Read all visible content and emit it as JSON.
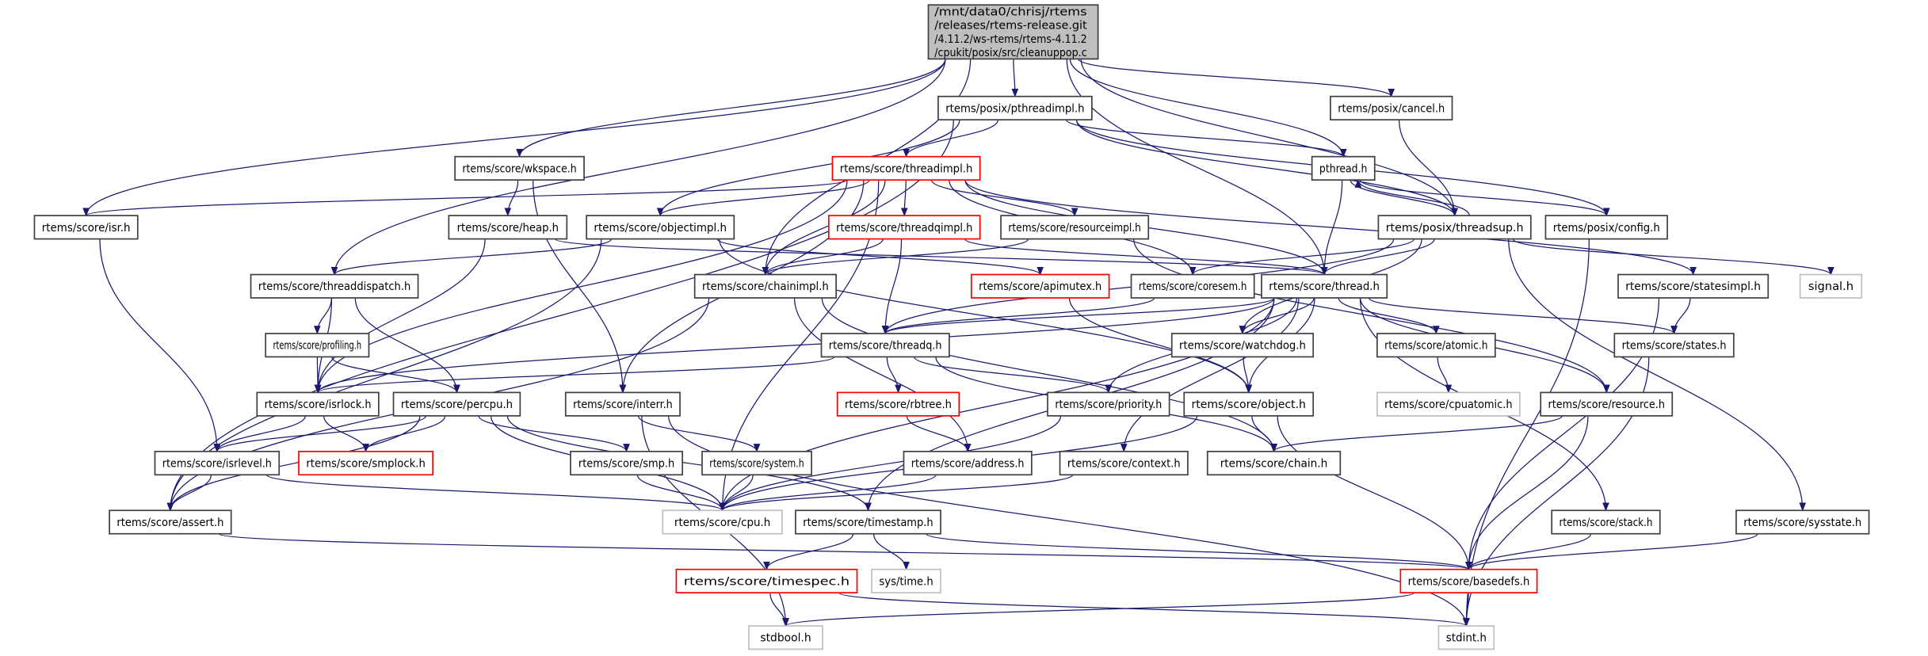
{
  "diagram": {
    "kind": "include dependency graph",
    "colors": {
      "edge": "#191970",
      "root_fill": "#bfbfbf",
      "missing_border": "#ff0000",
      "external_border": "#bfbfbf",
      "normal_border": "#404040"
    },
    "nodes": [
      {
        "id": "root",
        "lines": [
          "/mnt/data0/chrisj/rtems",
          "/releases/rtems-release.git",
          "/4.11.2/ws-rtems/rtems-4.11.2",
          "/cpukit/posix/src/cleanuppop.c"
        ],
        "style": "root"
      },
      {
        "id": "pthreadimpl",
        "label": "rtems/posix/pthreadimpl.h",
        "style": "normal"
      },
      {
        "id": "cancel",
        "label": "rtems/posix/cancel.h",
        "style": "normal"
      },
      {
        "id": "wkspace",
        "label": "rtems/score/wkspace.h",
        "style": "normal"
      },
      {
        "id": "threadimpl",
        "label": "rtems/score/threadimpl.h",
        "style": "red"
      },
      {
        "id": "pthread",
        "label": "pthread.h",
        "style": "normal"
      },
      {
        "id": "isr",
        "label": "rtems/score/isr.h",
        "style": "normal"
      },
      {
        "id": "heap",
        "label": "rtems/score/heap.h",
        "style": "normal"
      },
      {
        "id": "objectimpl",
        "label": "rtems/score/objectimpl.h",
        "style": "normal"
      },
      {
        "id": "threadqimpl",
        "label": "rtems/score/threadqimpl.h",
        "style": "red"
      },
      {
        "id": "resourceimpl",
        "label": "rtems/score/resourceimpl.h",
        "style": "normal"
      },
      {
        "id": "threadsup",
        "label": "rtems/posix/threadsup.h",
        "style": "normal"
      },
      {
        "id": "config",
        "label": "rtems/posix/config.h",
        "style": "normal"
      },
      {
        "id": "threaddispatch",
        "label": "rtems/score/threaddispatch.h",
        "style": "normal"
      },
      {
        "id": "chainimpl",
        "label": "rtems/score/chainimpl.h",
        "style": "normal"
      },
      {
        "id": "apimutex",
        "label": "rtems/score/apimutex.h",
        "style": "red"
      },
      {
        "id": "coresem",
        "label": "rtems/score/coresem.h",
        "style": "normal"
      },
      {
        "id": "thread",
        "label": "rtems/score/thread.h",
        "style": "normal"
      },
      {
        "id": "statesimpl",
        "label": "rtems/score/statesimpl.h",
        "style": "normal"
      },
      {
        "id": "signal",
        "label": "signal.h",
        "style": "gray"
      },
      {
        "id": "profiling",
        "label": "rtems/score/profiling.h",
        "style": "normal"
      },
      {
        "id": "threadq",
        "label": "rtems/score/threadq.h",
        "style": "normal"
      },
      {
        "id": "watchdog",
        "label": "rtems/score/watchdog.h",
        "style": "normal"
      },
      {
        "id": "atomic",
        "label": "rtems/score/atomic.h",
        "style": "normal"
      },
      {
        "id": "states",
        "label": "rtems/score/states.h",
        "style": "normal"
      },
      {
        "id": "isrlock",
        "label": "rtems/score/isrlock.h",
        "style": "normal"
      },
      {
        "id": "percpu",
        "label": "rtems/score/percpu.h",
        "style": "normal"
      },
      {
        "id": "interr",
        "label": "rtems/score/interr.h",
        "style": "normal"
      },
      {
        "id": "rbtree",
        "label": "rtems/score/rbtree.h",
        "style": "red"
      },
      {
        "id": "priority",
        "label": "rtems/score/priority.h",
        "style": "normal"
      },
      {
        "id": "object",
        "label": "rtems/score/object.h",
        "style": "normal"
      },
      {
        "id": "cpuatomic",
        "label": "rtems/score/cpuatomic.h",
        "style": "gray"
      },
      {
        "id": "resource",
        "label": "rtems/score/resource.h",
        "style": "normal"
      },
      {
        "id": "isrlevel",
        "label": "rtems/score/isrlevel.h",
        "style": "normal"
      },
      {
        "id": "smplock",
        "label": "rtems/score/smplock.h",
        "style": "red"
      },
      {
        "id": "smp",
        "label": "rtems/score/smp.h",
        "style": "normal"
      },
      {
        "id": "system",
        "label": "rtems/score/system.h",
        "style": "normal"
      },
      {
        "id": "address",
        "label": "rtems/score/address.h",
        "style": "normal"
      },
      {
        "id": "context",
        "label": "rtems/score/context.h",
        "style": "normal"
      },
      {
        "id": "chain",
        "label": "rtems/score/chain.h",
        "style": "normal"
      },
      {
        "id": "assert",
        "label": "rtems/score/assert.h",
        "style": "normal"
      },
      {
        "id": "cpu",
        "label": "rtems/score/cpu.h",
        "style": "gray"
      },
      {
        "id": "timestamp",
        "label": "rtems/score/timestamp.h",
        "style": "normal"
      },
      {
        "id": "stack",
        "label": "rtems/score/stack.h",
        "style": "normal"
      },
      {
        "id": "sysstate",
        "label": "rtems/score/sysstate.h",
        "style": "normal"
      },
      {
        "id": "timespec",
        "label": "rtems/score/timespec.h",
        "style": "red"
      },
      {
        "id": "systime",
        "label": "sys/time.h",
        "style": "gray"
      },
      {
        "id": "basedefs",
        "label": "rtems/score/basedefs.h",
        "style": "red"
      },
      {
        "id": "stdbool",
        "label": "stdbool.h",
        "style": "gray"
      },
      {
        "id": "stdint",
        "label": "stdint.h",
        "style": "gray"
      }
    ],
    "edges": [
      [
        "root",
        "isr"
      ],
      [
        "root",
        "threaddispatch"
      ],
      [
        "root",
        "chainimpl"
      ],
      [
        "root",
        "wkspace"
      ],
      [
        "root",
        "pthreadimpl"
      ],
      [
        "root",
        "thread"
      ],
      [
        "root",
        "pthread"
      ],
      [
        "root",
        "threadsup"
      ],
      [
        "root",
        "cancel"
      ],
      [
        "pthreadimpl",
        "threadimpl"
      ],
      [
        "pthreadimpl",
        "objectimpl"
      ],
      [
        "pthreadimpl",
        "pthread"
      ],
      [
        "pthreadimpl",
        "threadsup"
      ],
      [
        "pthreadimpl",
        "config"
      ],
      [
        "pthreadimpl",
        "assert"
      ],
      [
        "wkspace",
        "heap"
      ],
      [
        "wkspace",
        "interr"
      ],
      [
        "threadimpl",
        "isr"
      ],
      [
        "threadimpl",
        "objectimpl"
      ],
      [
        "threadimpl",
        "threadqimpl"
      ],
      [
        "threadimpl",
        "resourceimpl"
      ],
      [
        "threadimpl",
        "chainimpl"
      ],
      [
        "threadimpl",
        "interr"
      ],
      [
        "threadimpl",
        "thread"
      ],
      [
        "threadimpl",
        "statesimpl"
      ],
      [
        "threadimpl",
        "cpu"
      ],
      [
        "threadimpl",
        "isrlock"
      ],
      [
        "threadimpl",
        "coresem"
      ],
      [
        "cancel",
        "threadsup"
      ],
      [
        "pthread",
        "threadsup"
      ],
      [
        "pthread",
        "config"
      ],
      [
        "pthread",
        "thread"
      ],
      [
        "threadsup",
        "pthread"
      ],
      [
        "threadsup",
        "thread"
      ],
      [
        "threadsup",
        "coresem"
      ],
      [
        "threadsup",
        "watchdog"
      ],
      [
        "threadsup",
        "threadq"
      ],
      [
        "threadsup",
        "sysstate"
      ],
      [
        "threadsup",
        "signal"
      ],
      [
        "config",
        "stdint"
      ],
      [
        "isr",
        "isrlevel"
      ],
      [
        "heap",
        "thread"
      ],
      [
        "heap",
        "isrlock"
      ],
      [
        "objectimpl",
        "threaddispatch"
      ],
      [
        "objectimpl",
        "apimutex"
      ],
      [
        "objectimpl",
        "object"
      ],
      [
        "objectimpl",
        "assert"
      ],
      [
        "threadqimpl",
        "chainimpl"
      ],
      [
        "threadqimpl",
        "threadq"
      ],
      [
        "threadqimpl",
        "thread"
      ],
      [
        "resourceimpl",
        "chainimpl"
      ],
      [
        "resourceimpl",
        "resource"
      ],
      [
        "threaddispatch",
        "profiling"
      ],
      [
        "threaddispatch",
        "percpu"
      ],
      [
        "threaddispatch",
        "isrlock"
      ],
      [
        "chainimpl",
        "address"
      ],
      [
        "chainimpl",
        "chain"
      ],
      [
        "chainimpl",
        "assert"
      ],
      [
        "apimutex",
        "object"
      ],
      [
        "coresem",
        "threadq"
      ],
      [
        "thread",
        "threadq"
      ],
      [
        "thread",
        "isrlock"
      ],
      [
        "thread",
        "watchdog"
      ],
      [
        "thread",
        "atomic"
      ],
      [
        "thread",
        "states"
      ],
      [
        "thread",
        "priority"
      ],
      [
        "thread",
        "object"
      ],
      [
        "thread",
        "context"
      ],
      [
        "thread",
        "resource"
      ],
      [
        "thread",
        "stack"
      ],
      [
        "thread",
        "cpu"
      ],
      [
        "thread",
        "timestamp"
      ],
      [
        "statesimpl",
        "states"
      ],
      [
        "statesimpl",
        "basedefs"
      ],
      [
        "profiling",
        "isrlock"
      ],
      [
        "profiling",
        "percpu"
      ],
      [
        "threadq",
        "rbtree"
      ],
      [
        "threadq",
        "priority"
      ],
      [
        "threadq",
        "chain"
      ],
      [
        "threadq",
        "isrlock"
      ],
      [
        "watchdog",
        "object"
      ],
      [
        "atomic",
        "cpuatomic"
      ],
      [
        "states",
        "stdint"
      ],
      [
        "isrlock",
        "isrlevel"
      ],
      [
        "isrlock",
        "smplock"
      ],
      [
        "percpu",
        "isrlevel"
      ],
      [
        "percpu",
        "smplock"
      ],
      [
        "percpu",
        "smp"
      ],
      [
        "percpu",
        "cpu"
      ],
      [
        "percpu",
        "assert"
      ],
      [
        "percpu",
        "timestamp"
      ],
      [
        "interr",
        "system"
      ],
      [
        "interr",
        "stdbool"
      ],
      [
        "interr",
        "stdint"
      ],
      [
        "rbtree",
        "address"
      ],
      [
        "priority",
        "cpu"
      ],
      [
        "object",
        "chain"
      ],
      [
        "object",
        "cpu"
      ],
      [
        "object",
        "basedefs"
      ],
      [
        "resource",
        "chain"
      ],
      [
        "resource",
        "basedefs"
      ],
      [
        "isrlevel",
        "assert"
      ],
      [
        "isrlevel",
        "cpu"
      ],
      [
        "smp",
        "cpu"
      ],
      [
        "system",
        "cpu"
      ],
      [
        "address",
        "cpu"
      ],
      [
        "context",
        "cpu"
      ],
      [
        "assert",
        "basedefs"
      ],
      [
        "timestamp",
        "timespec"
      ],
      [
        "timestamp",
        "systime"
      ],
      [
        "timestamp",
        "basedefs"
      ],
      [
        "stack",
        "basedefs"
      ],
      [
        "sysstate",
        "basedefs"
      ],
      [
        "timespec",
        "stdbool"
      ],
      [
        "timespec",
        "stdint"
      ],
      [
        "basedefs",
        "stdbool"
      ],
      [
        "basedefs",
        "stdint"
      ]
    ]
  }
}
